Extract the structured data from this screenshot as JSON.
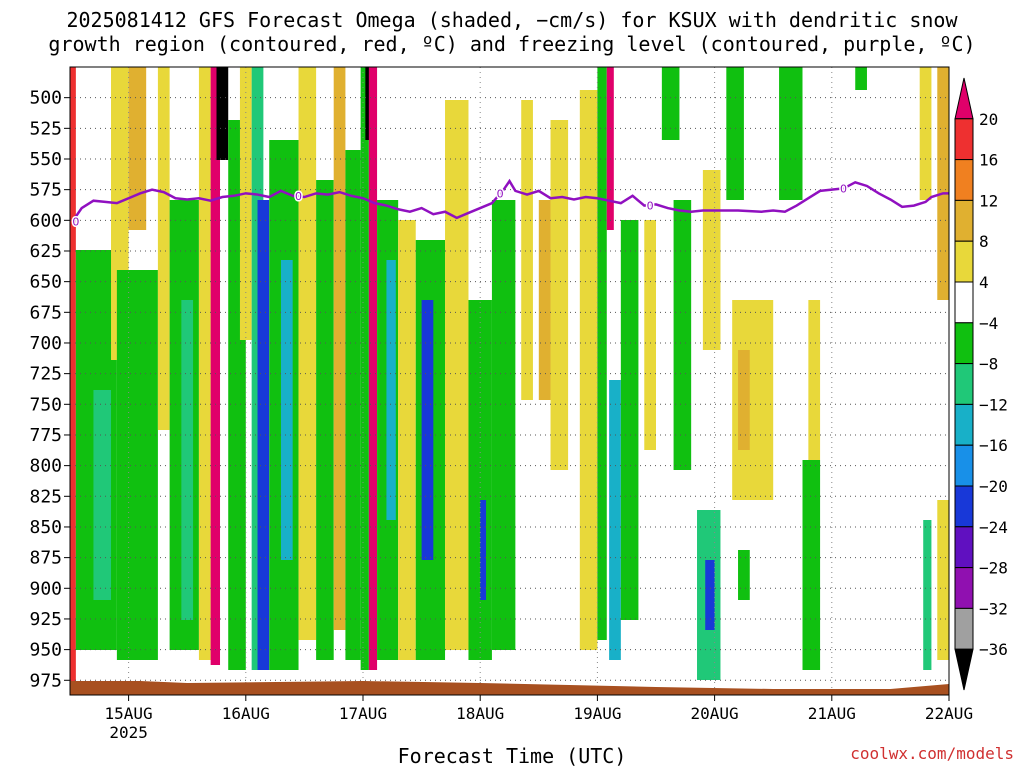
{
  "title": {
    "line1": "2025081412 GFS Forecast Omega (shaded, −cm/s) for KSUX with dendritic snow",
    "line2": "growth region (contoured, red, ºC) and freezing level (contoured, purple, ºC)"
  },
  "credit": "coolwx.com/models",
  "chart_data": {
    "type": "heatmap",
    "xlabel": "Forecast Time (UTC)",
    "ylabel": "",
    "y_axis": {
      "inverted": true,
      "ticks": [
        500,
        525,
        550,
        575,
        600,
        625,
        650,
        675,
        700,
        725,
        750,
        775,
        800,
        825,
        850,
        875,
        900,
        925,
        950,
        975
      ],
      "range": [
        475,
        987
      ]
    },
    "x_axis": {
      "ticks": [
        "15AUG",
        "16AUG",
        "17AUG",
        "18AUG",
        "19AUG",
        "20AUG",
        "21AUG",
        "22AUG"
      ],
      "ticks_secondary": {
        "15AUG": "2025"
      },
      "range_days": [
        14.5,
        22.0
      ]
    },
    "grid": true,
    "colorbar": {
      "levels": [
        20,
        16,
        12,
        8,
        4,
        -4,
        -8,
        -12,
        -16,
        -20,
        -24,
        -28,
        -32,
        -36
      ],
      "colors": [
        "#e0006a",
        "#ee3030",
        "#f08020",
        "#e0b030",
        "#e8d83a",
        "#ffffff",
        "#10c010",
        "#20c878",
        "#18b0c8",
        "#1890e8",
        "#1838d8",
        "#6010c0",
        "#9010b0",
        "#a0a0a0",
        "#000000"
      ]
    },
    "freezing_level": {
      "color": "#9010c0",
      "label": "0",
      "points": [
        [
          14.52,
          601
        ],
        [
          14.6,
          590
        ],
        [
          14.7,
          584
        ],
        [
          14.8,
          585
        ],
        [
          14.9,
          586
        ],
        [
          15.0,
          582
        ],
        [
          15.1,
          578
        ],
        [
          15.2,
          575
        ],
        [
          15.3,
          577
        ],
        [
          15.4,
          582
        ],
        [
          15.5,
          583
        ],
        [
          15.6,
          582
        ],
        [
          15.7,
          584
        ],
        [
          15.8,
          581
        ],
        [
          15.9,
          580
        ],
        [
          16.0,
          578
        ],
        [
          16.1,
          579
        ],
        [
          16.2,
          581
        ],
        [
          16.3,
          576
        ],
        [
          16.4,
          580
        ],
        [
          16.5,
          581
        ],
        [
          16.6,
          578
        ],
        [
          16.7,
          579
        ],
        [
          16.8,
          577
        ],
        [
          16.9,
          580
        ],
        [
          17.0,
          582
        ],
        [
          17.1,
          586
        ],
        [
          17.2,
          588
        ],
        [
          17.3,
          591
        ],
        [
          17.4,
          593
        ],
        [
          17.5,
          590
        ],
        [
          17.6,
          595
        ],
        [
          17.7,
          593
        ],
        [
          17.8,
          598
        ],
        [
          17.9,
          594
        ],
        [
          18.0,
          590
        ],
        [
          18.1,
          586
        ],
        [
          18.2,
          575
        ],
        [
          18.25,
          568
        ],
        [
          18.3,
          576
        ],
        [
          18.4,
          579
        ],
        [
          18.5,
          576
        ],
        [
          18.6,
          582
        ],
        [
          18.7,
          581
        ],
        [
          18.8,
          583
        ],
        [
          18.9,
          581
        ],
        [
          19.0,
          582
        ],
        [
          19.1,
          584
        ],
        [
          19.2,
          586
        ],
        [
          19.3,
          580
        ],
        [
          19.4,
          588
        ],
        [
          19.5,
          587
        ],
        [
          19.6,
          590
        ],
        [
          19.7,
          592
        ],
        [
          19.8,
          593
        ],
        [
          19.9,
          592
        ],
        [
          20.0,
          592
        ],
        [
          20.2,
          592
        ],
        [
          20.4,
          593
        ],
        [
          20.5,
          592
        ],
        [
          20.6,
          593
        ],
        [
          20.7,
          588
        ],
        [
          20.8,
          582
        ],
        [
          20.9,
          576
        ],
        [
          21.0,
          575
        ],
        [
          21.1,
          574
        ],
        [
          21.2,
          569
        ],
        [
          21.3,
          572
        ],
        [
          21.4,
          578
        ],
        [
          21.5,
          583
        ],
        [
          21.6,
          589
        ],
        [
          21.7,
          588
        ],
        [
          21.8,
          585
        ],
        [
          21.85,
          581
        ],
        [
          21.95,
          578
        ],
        [
          22.0,
          578
        ]
      ]
    },
    "ground_band": {
      "color": "#a85020"
    }
  }
}
